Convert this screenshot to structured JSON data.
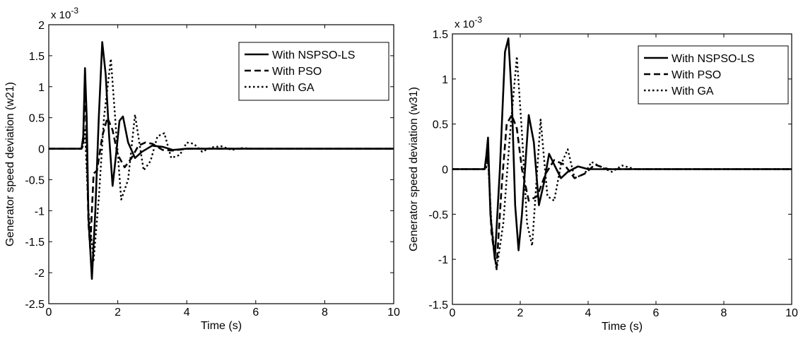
{
  "chart_data": [
    {
      "type": "line",
      "title": "",
      "xlabel": "Time (s)",
      "ylabel": "Generator speed deviation (w21)",
      "exponent": {
        "base": "x 10",
        "power": "-3"
      },
      "xlim": [
        0,
        10
      ],
      "ylim": [
        -2.5,
        2
      ],
      "xticks": [
        0,
        2,
        4,
        6,
        8,
        10
      ],
      "yticks": [
        -2.5,
        -2,
        -1.5,
        -1,
        -0.5,
        0,
        0.5,
        1,
        1.5,
        2
      ],
      "xtick_labels": [
        "0",
        "2",
        "4",
        "6",
        "8",
        "10"
      ],
      "ytick_labels": [
        "-2.5",
        "-2",
        "-1.5",
        "-1",
        "-0.5",
        "0",
        "0.5",
        "1",
        "1.5",
        "2"
      ],
      "grid": false,
      "legend_position": "top-right",
      "series": [
        {
          "name": "With NSPSO-LS",
          "style": "solid",
          "x": [
            0,
            0.95,
            1.0,
            1.05,
            1.1,
            1.15,
            1.25,
            1.35,
            1.45,
            1.55,
            1.65,
            1.75,
            1.85,
            1.95,
            2.05,
            2.15,
            2.3,
            2.5,
            2.7,
            3.0,
            3.3,
            3.6,
            4.0,
            4.5,
            10
          ],
          "y": [
            0,
            0,
            0.2,
            1.3,
            0.5,
            -1.1,
            -2.1,
            -1.0,
            0.5,
            1.72,
            1.2,
            0.2,
            -0.6,
            -0.1,
            0.45,
            0.52,
            0.1,
            -0.15,
            -0.05,
            0.05,
            0.03,
            -0.02,
            0.0,
            0.0,
            0
          ]
        },
        {
          "name": "With PSO",
          "style": "dashed",
          "x": [
            0,
            0.95,
            1.0,
            1.05,
            1.15,
            1.2,
            1.3,
            1.4,
            1.55,
            1.7,
            1.85,
            2.0,
            2.2,
            2.4,
            2.6,
            2.8,
            3.0,
            3.3,
            3.6,
            4.0,
            4.5,
            10
          ],
          "y": [
            0,
            0,
            0.1,
            1.2,
            -1.2,
            -1.6,
            -0.4,
            -0.35,
            0.2,
            0.5,
            0.3,
            -0.1,
            -0.3,
            -0.15,
            0.05,
            0.1,
            0.08,
            -0.02,
            -0.03,
            0.0,
            0.0,
            0
          ]
        },
        {
          "name": "With GA",
          "style": "dotted",
          "x": [
            0,
            0.95,
            1.0,
            1.05,
            1.15,
            1.3,
            1.45,
            1.6,
            1.8,
            1.95,
            2.1,
            2.3,
            2.5,
            2.75,
            2.95,
            3.15,
            3.35,
            3.55,
            3.8,
            4.0,
            4.2,
            4.45,
            4.7,
            5.0,
            5.3,
            5.6,
            6.0,
            10
          ],
          "y": [
            0,
            0,
            0.05,
            0.3,
            -1.0,
            -1.8,
            -0.8,
            0.5,
            1.45,
            0.3,
            -0.82,
            -0.5,
            0.55,
            -0.35,
            -0.2,
            0.2,
            0.25,
            -0.15,
            -0.1,
            0.1,
            0.08,
            -0.05,
            0.02,
            0.04,
            -0.02,
            0.01,
            0.0,
            0
          ]
        }
      ]
    },
    {
      "type": "line",
      "title": "",
      "xlabel": "Time (s)",
      "ylabel": "Generator speed deviation (w31)",
      "exponent": {
        "base": "x 10",
        "power": "-3"
      },
      "xlim": [
        0,
        10
      ],
      "ylim": [
        -1.5,
        1.5
      ],
      "xticks": [
        0,
        2,
        4,
        6,
        8,
        10
      ],
      "yticks": [
        -1.5,
        -1,
        -0.5,
        0,
        0.5,
        1,
        1.5
      ],
      "xtick_labels": [
        "0",
        "2",
        "4",
        "6",
        "8",
        "10"
      ],
      "ytick_labels": [
        "-1.5",
        "-1",
        "-0.5",
        "0",
        "0.5",
        "1",
        "1.5"
      ],
      "grid": false,
      "legend_position": "top-right",
      "series": [
        {
          "name": "With NSPSO-LS",
          "style": "solid",
          "x": [
            0,
            0.95,
            1.0,
            1.05,
            1.12,
            1.25,
            1.4,
            1.55,
            1.65,
            1.75,
            1.85,
            1.95,
            2.05,
            2.25,
            2.4,
            2.55,
            2.7,
            2.85,
            3.0,
            3.2,
            3.4,
            3.7,
            4.0,
            4.5,
            10
          ],
          "y": [
            0,
            0,
            0.15,
            0.35,
            -0.5,
            -1.0,
            0.0,
            1.3,
            1.45,
            0.8,
            -0.4,
            -0.9,
            -0.5,
            0.6,
            0.3,
            -0.4,
            -0.15,
            0.17,
            0.05,
            -0.1,
            -0.03,
            0.03,
            0.0,
            0.0,
            0
          ]
        },
        {
          "name": "With PSO",
          "style": "dashed",
          "x": [
            0,
            0.95,
            1.0,
            1.05,
            1.15,
            1.3,
            1.45,
            1.6,
            1.75,
            1.9,
            2.05,
            2.25,
            2.5,
            2.75,
            3.0,
            3.3,
            3.6,
            3.9,
            4.2,
            4.6,
            5.0,
            10
          ],
          "y": [
            0,
            0,
            0.05,
            0.2,
            -0.7,
            -1.1,
            -0.2,
            0.5,
            0.6,
            0.45,
            0.0,
            -0.35,
            -0.3,
            -0.05,
            0.1,
            0.05,
            -0.1,
            -0.05,
            0.05,
            0.0,
            0.0,
            0
          ]
        },
        {
          "name": "With GA",
          "style": "dotted",
          "x": [
            0,
            0.95,
            1.0,
            1.05,
            1.15,
            1.3,
            1.5,
            1.7,
            1.9,
            2.05,
            2.2,
            2.35,
            2.6,
            2.8,
            3.0,
            3.2,
            3.4,
            3.6,
            3.9,
            4.1,
            4.4,
            4.7,
            5.0,
            5.4,
            6.0,
            10
          ],
          "y": [
            0,
            0,
            0.02,
            0.1,
            -0.6,
            -1.12,
            -0.6,
            0.4,
            1.25,
            0.4,
            -0.6,
            -0.85,
            0.55,
            -0.3,
            -0.35,
            0.05,
            0.22,
            -0.1,
            -0.05,
            0.08,
            0.02,
            -0.03,
            0.04,
            0.0,
            0.0,
            0
          ]
        }
      ]
    }
  ]
}
